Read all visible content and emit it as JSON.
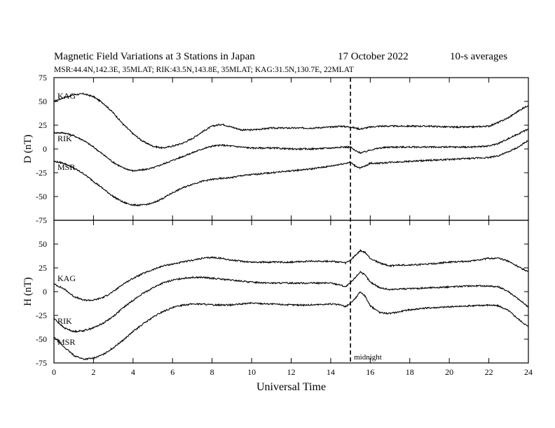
{
  "header": {
    "title": "Magnetic Field Variations at 3 Stations in Japan",
    "date": "17 October 2022",
    "averaging": "10-s averages",
    "stations_info": "MSR:44.4N,142.3E, 35MLAT;  RIK:43.5N,143.8E, 35MLAT;  KAG:31.5N,130.7E, 22MLAT"
  },
  "chart_data": [
    {
      "type": "line",
      "ylabel": "D (nT)",
      "xlabel": "",
      "ylim": [
        -75,
        75
      ],
      "yticks": [
        -75,
        -50,
        -25,
        0,
        25,
        50,
        75
      ],
      "xlim": [
        0,
        24
      ],
      "series": [
        {
          "name": "KAG",
          "x": [
            0,
            0.5,
            1,
            1.5,
            2,
            2.5,
            3,
            3.5,
            4,
            4.5,
            5,
            5.5,
            6,
            6.5,
            7,
            7.5,
            8,
            8.5,
            9,
            9.5,
            10,
            11,
            12,
            13,
            14,
            14.5,
            15,
            15.25,
            15.5,
            15.75,
            16,
            16.5,
            17,
            18,
            19,
            20,
            21,
            22,
            22.5,
            23,
            23.5,
            24
          ],
          "y": [
            50,
            54,
            57,
            58,
            55,
            48,
            38,
            26,
            16,
            8,
            3,
            1,
            3,
            6,
            11,
            18,
            24,
            26,
            23,
            20,
            20,
            22,
            22,
            22,
            23,
            24,
            23,
            22,
            21,
            22,
            23,
            24,
            24,
            24,
            24,
            23,
            23,
            24,
            28,
            33,
            40,
            46
          ]
        },
        {
          "name": "RIK",
          "x": [
            0,
            0.5,
            1,
            1.5,
            2,
            2.5,
            3,
            3.5,
            4,
            4.5,
            5,
            5.5,
            6,
            6.5,
            7,
            7.5,
            8,
            8.5,
            9,
            9.5,
            10,
            11,
            12,
            13,
            14,
            14.5,
            15,
            15.25,
            15.5,
            15.75,
            16,
            16.5,
            17,
            18,
            19,
            20,
            21,
            22,
            22.5,
            23,
            23.5,
            24
          ],
          "y": [
            17,
            17,
            14,
            9,
            2,
            -6,
            -14,
            -20,
            -23,
            -22,
            -20,
            -16,
            -12,
            -8,
            -4,
            0,
            3,
            4,
            3,
            2,
            1,
            1,
            0,
            0,
            1,
            2,
            2,
            -2,
            -4,
            -3,
            -1,
            1,
            2,
            2,
            2,
            2,
            2,
            3,
            6,
            11,
            16,
            21
          ]
        },
        {
          "name": "MSR",
          "x": [
            0,
            0.5,
            1,
            1.5,
            2,
            2.5,
            3,
            3.5,
            4,
            4.5,
            5,
            5.5,
            6,
            6.5,
            7,
            7.5,
            8,
            8.5,
            9,
            9.5,
            10,
            11,
            12,
            13,
            14,
            14.5,
            15,
            15.25,
            15.5,
            15.75,
            16,
            16.5,
            17,
            18,
            19,
            20,
            21,
            22,
            22.5,
            23,
            23.5,
            24
          ],
          "y": [
            -13,
            -15,
            -20,
            -26,
            -34,
            -42,
            -50,
            -56,
            -59,
            -59,
            -57,
            -52,
            -46,
            -41,
            -37,
            -34,
            -32,
            -31,
            -30,
            -28,
            -27,
            -25,
            -23,
            -21,
            -18,
            -16,
            -14,
            -18,
            -20,
            -18,
            -15,
            -15,
            -14,
            -13,
            -12,
            -11,
            -10,
            -9,
            -7,
            -3,
            2,
            9
          ]
        }
      ]
    },
    {
      "type": "line",
      "ylabel": "H (nT)",
      "xlabel": "Universal Time",
      "ylim": [
        -75,
        75
      ],
      "yticks": [
        -75,
        -50,
        -25,
        0,
        25,
        50
      ],
      "xlim": [
        0,
        24
      ],
      "xticks": [
        0,
        2,
        4,
        6,
        8,
        10,
        12,
        14,
        16,
        18,
        20,
        22,
        24
      ],
      "series": [
        {
          "name": "KAG",
          "x": [
            0,
            0.5,
            1,
            1.5,
            2,
            2.5,
            3,
            3.5,
            4,
            4.5,
            5,
            5.5,
            6,
            6.5,
            7,
            7.5,
            8,
            8.5,
            9,
            9.5,
            10,
            11,
            12,
            13,
            14,
            14.5,
            14.75,
            15,
            15.25,
            15.5,
            15.75,
            16,
            16.5,
            17,
            17.5,
            18,
            19,
            20,
            21,
            22,
            22.5,
            23,
            23.5,
            24
          ],
          "y": [
            8,
            3,
            -5,
            -9,
            -9,
            -6,
            0,
            8,
            14,
            19,
            23,
            27,
            29,
            31,
            33,
            35,
            36,
            35,
            33,
            32,
            31,
            31,
            31,
            32,
            32,
            31,
            30,
            33,
            38,
            43,
            41,
            35,
            30,
            27,
            28,
            28,
            29,
            31,
            32,
            35,
            35,
            32,
            26,
            21
          ]
        },
        {
          "name": "RIK",
          "x": [
            0,
            0.5,
            1,
            1.5,
            2,
            2.5,
            3,
            3.5,
            4,
            4.5,
            5,
            5.5,
            6,
            6.5,
            7,
            7.5,
            8,
            8.5,
            9,
            9.5,
            10,
            11,
            12,
            13,
            14,
            14.5,
            14.75,
            15,
            15.25,
            15.5,
            15.75,
            16,
            16.5,
            17,
            17.5,
            18,
            19,
            20,
            21,
            22,
            22.5,
            23,
            23.5,
            24
          ],
          "y": [
            -28,
            -38,
            -42,
            -41,
            -38,
            -33,
            -26,
            -17,
            -9,
            -2,
            4,
            9,
            12,
            14,
            15,
            15,
            14,
            13,
            12,
            11,
            10,
            9,
            9,
            9,
            9,
            7,
            5,
            9,
            15,
            21,
            17,
            10,
            4,
            2,
            3,
            3,
            4,
            5,
            6,
            6,
            5,
            0,
            -8,
            -16
          ]
        },
        {
          "name": "MSR",
          "x": [
            0,
            0.5,
            1,
            1.5,
            2,
            2.5,
            3,
            3.5,
            4,
            4.5,
            5,
            5.5,
            6,
            6.5,
            7,
            7.5,
            8,
            8.5,
            9,
            9.5,
            10,
            11,
            12,
            13,
            14,
            14.5,
            14.75,
            15,
            15.25,
            15.5,
            15.75,
            16,
            16.5,
            17,
            17.5,
            18,
            19,
            20,
            21,
            22,
            22.5,
            23,
            23.5,
            24
          ],
          "y": [
            -48,
            -58,
            -67,
            -71,
            -70,
            -66,
            -59,
            -51,
            -42,
            -34,
            -27,
            -21,
            -17,
            -14,
            -13,
            -13,
            -14,
            -14,
            -14,
            -13,
            -12,
            -13,
            -14,
            -14,
            -13,
            -14,
            -16,
            -12,
            -7,
            0,
            -5,
            -15,
            -22,
            -23,
            -21,
            -19,
            -17,
            -16,
            -15,
            -14,
            -15,
            -20,
            -29,
            -37
          ]
        }
      ]
    }
  ],
  "annotations": {
    "midnight_label": "midnight",
    "midnight_ut": 15
  }
}
